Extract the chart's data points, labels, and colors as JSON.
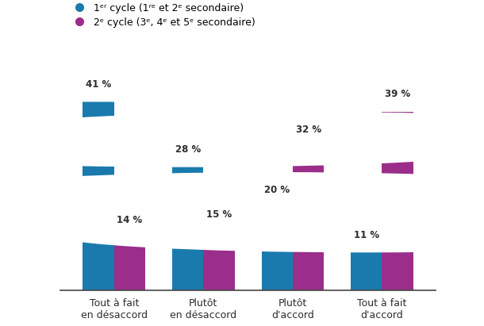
{
  "categories": [
    "Tout à fait\nen désaccord",
    "Plutôt\nen désaccord",
    "Plutôt\nd'accord",
    "Tout à fait\nd'accord"
  ],
  "series1_label": "1ᵉʳ cycle (1ʳᵉ et 2ᵉ secondaire)",
  "series2_label": "2ᵉ cycle (3ᵉ, 4ᵉ et 5ᵉ secondaire)",
  "series1_values": [
    41,
    28,
    20,
    11
  ],
  "series2_values": [
    14,
    15,
    32,
    39
  ],
  "series1_color": "#1a7aad",
  "series2_color": "#9b2e8a",
  "circle_color": "#ffffff",
  "text_color": "#2d2d2d",
  "background_color": "#ffffff",
  "bar_width": 0.35,
  "ylim": [
    0,
    50
  ],
  "legend_dot_color1": "#1a7aad",
  "legend_dot_color2": "#9b2e8a"
}
